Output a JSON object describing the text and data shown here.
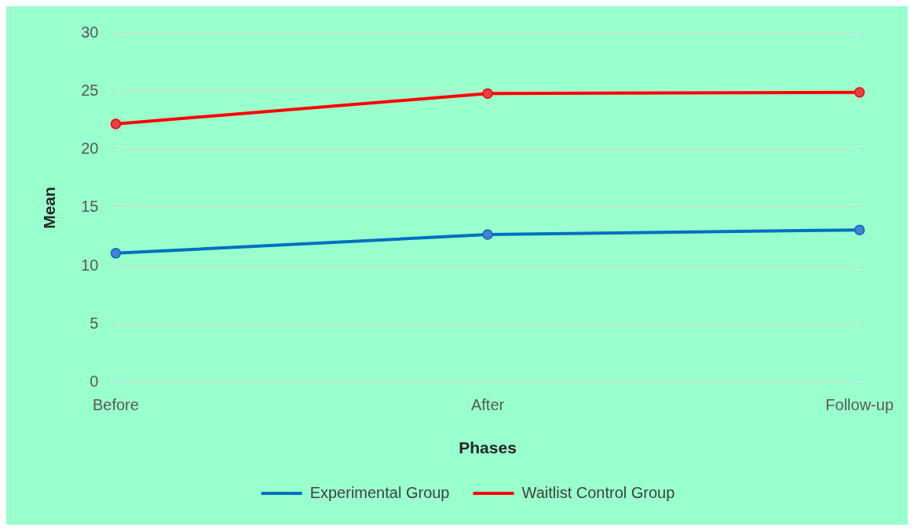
{
  "chart_data": {
    "type": "line",
    "xlabel": "Phases",
    "ylabel": "Mean",
    "categories": [
      "Before",
      "After",
      "Follow-up"
    ],
    "series": [
      {
        "name": "Experimental Group",
        "color": "#0070c0",
        "values": [
          11.1,
          12.7,
          13.1
        ]
      },
      {
        "name": "Waitlist Control Group",
        "color": "#ff0000",
        "values": [
          22.2,
          24.8,
          24.9
        ]
      }
    ],
    "ylim": [
      0,
      30
    ],
    "yticks": [
      0,
      5,
      10,
      15,
      20,
      25,
      30
    ],
    "grid": "y",
    "legend": "bottom",
    "marker": "circle",
    "line_style": "solid"
  }
}
